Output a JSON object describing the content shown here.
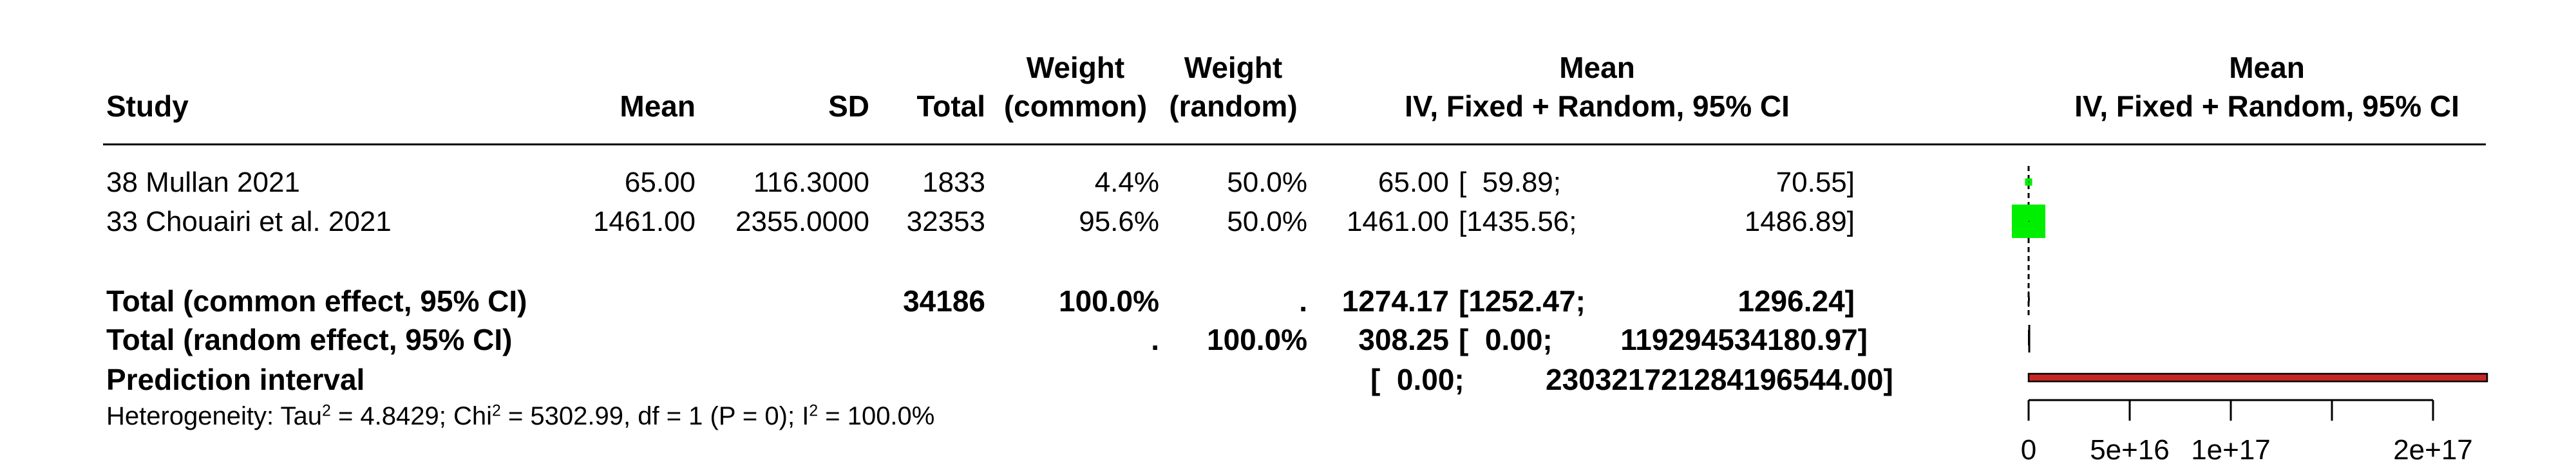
{
  "headers": {
    "study": "Study",
    "mean": "Mean",
    "sd": "SD",
    "total": "Total",
    "weight_common_1": "Weight",
    "weight_common_2": "(common)",
    "weight_random_1": "Weight",
    "weight_random_2": "(random)",
    "ci_1": "Mean",
    "ci_2": "IV, Fixed + Random, 95% CI",
    "plot_1": "Mean",
    "plot_2": "IV, Fixed + Random, 95% CI"
  },
  "studies": [
    {
      "name": "38 Mullan 2021",
      "mean": "65.00",
      "sd": "116.3000",
      "total": "1833",
      "w_common": "4.4%",
      "w_random": "50.0%",
      "ci_est": "65.00",
      "ci_low": "[  59.89;",
      "ci_high": "70.55]"
    },
    {
      "name": "33 Chouairi et al. 2021",
      "mean": "1461.00",
      "sd": "2355.0000",
      "total": "32353",
      "w_common": "95.6%",
      "w_random": "50.0%",
      "ci_est": "1461.00",
      "ci_low": "[1435.56;",
      "ci_high": "1486.89]"
    }
  ],
  "common": {
    "label": "Total (common effect, 95% CI)",
    "total": "34186",
    "w_common": "100.0%",
    "w_random": ".",
    "ci_est": "1274.17",
    "ci_low": "[1252.47;",
    "ci_high": "1296.24]"
  },
  "random": {
    "label": "Total (random effect, 95% CI)",
    "w_common": ".",
    "w_random": "100.0%",
    "ci_est": "308.25",
    "ci_low": "[  0.00;",
    "ci_high": "119294534180.97]"
  },
  "prediction": {
    "label": "Prediction interval",
    "ci_low": "[  0.00;",
    "ci_high": "230321721284196544.00]"
  },
  "heterogeneity": {
    "prefix": "Heterogeneity: Tau",
    "sup1": "2",
    "mid1": " = 4.8429; Chi",
    "sup2": "2",
    "mid2": " = 5302.99, df = 1 (P = 0); I",
    "sup3": "2",
    "suffix": " = 100.0%"
  },
  "chart_data": {
    "type": "forest",
    "x_ticks": [
      0,
      5e+16,
      1e+17,
      1.5e+17,
      2e+17
    ],
    "x_tick_labels": [
      "0",
      "5e+16",
      "1e+17",
      "",
      "2e+17"
    ],
    "xlim": [
      0,
      2.3e+17
    ],
    "studies": [
      {
        "name": "38 Mullan 2021",
        "estimate": 65.0,
        "lower": 59.89,
        "upper": 70.55,
        "weight_common": 4.4
      },
      {
        "name": "33 Chouairi et al. 2021",
        "estimate": 1461.0,
        "lower": 1435.56,
        "upper": 1486.89,
        "weight_common": 95.6
      }
    ],
    "common_effect": {
      "estimate": 1274.17,
      "lower": 1252.47,
      "upper": 1296.24
    },
    "random_effect": {
      "estimate": 308.25,
      "lower": 0.0,
      "upper": 119294534180.97
    },
    "prediction_interval": {
      "lower": 0.0,
      "upper": 2.3032172128419654e+17
    },
    "colors": {
      "square": "#00ee00",
      "prediction_fill": "#c62828",
      "prediction_border": "#000000",
      "line": "#000000"
    }
  }
}
